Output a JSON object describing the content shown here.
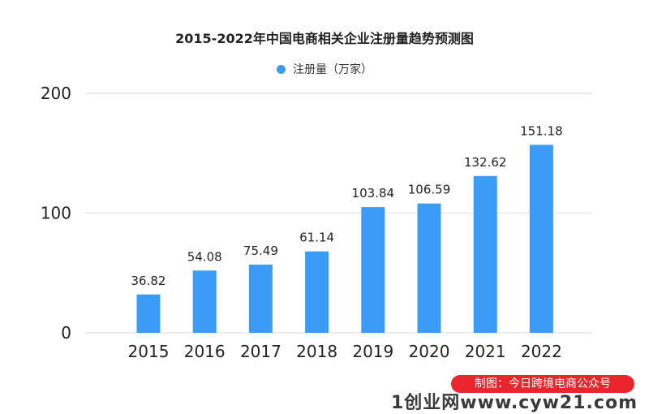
{
  "chart_data": {
    "type": "bar",
    "title": "2015-2022年中国电商相关企业注册量趋势预测图",
    "categories": [
      "2015",
      "2016",
      "2017",
      "2018",
      "2019",
      "2020",
      "2021",
      "2022"
    ],
    "series": [
      {
        "name": "注册量（万家）",
        "values": [
          36.82,
          54.08,
          75.49,
          61.14,
          103.84,
          106.59,
          132.62,
          151.18
        ]
      }
    ],
    "data_labels": [
      "36.82",
      "54.08",
      "75.49",
      "61.14",
      "103.84",
      "106.59",
      "132.62",
      "151.18"
    ],
    "bar_heights_read": [
      32,
      52,
      57,
      68,
      105,
      108,
      131,
      157
    ],
    "ylim": [
      0,
      200
    ],
    "yticks": [
      "0",
      "100",
      "200"
    ],
    "grid": true,
    "legend_position": "top-center",
    "colors": {
      "bar": "#3a9cf5",
      "grid": "#ececec",
      "badge": "#e8262b"
    }
  },
  "credit": "制图：今日跨境电商公众号",
  "watermark": "1创业网www.cyw21.com"
}
